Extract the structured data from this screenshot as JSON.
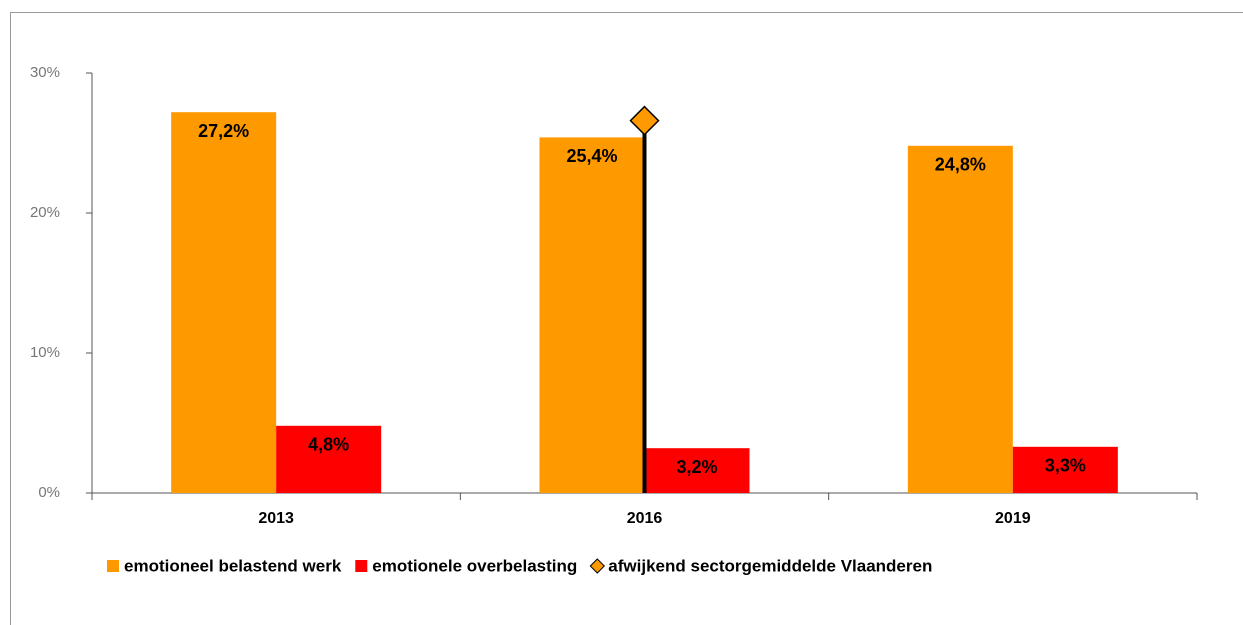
{
  "chart_data": {
    "type": "bar",
    "categories": [
      "2013",
      "2016",
      "2019"
    ],
    "series": [
      {
        "name": "emotioneel belastend werk",
        "color": "#ff9900",
        "values": [
          27.2,
          25.4,
          24.8
        ],
        "value_labels": [
          "27,2%",
          "25,4%",
          "24,8%"
        ]
      },
      {
        "name": "emotionele overbelasting",
        "color": "#ff0000",
        "values": [
          4.8,
          3.2,
          3.3
        ],
        "value_labels": [
          "4,8%",
          "3,2%",
          "3,3%"
        ]
      },
      {
        "name": "afwijkend sectorgemiddelde Vlaanderen",
        "color": "#ff9900",
        "marker": "diamond",
        "drop_line": true,
        "values": [
          null,
          26.6,
          null
        ]
      }
    ],
    "ylim": [
      0,
      30
    ],
    "yticks": [
      {
        "value": 0,
        "label": "0%"
      },
      {
        "value": 10,
        "label": "10%"
      },
      {
        "value": 20,
        "label": "20%"
      },
      {
        "value": 30,
        "label": "30%"
      }
    ],
    "legend": "bottom"
  }
}
